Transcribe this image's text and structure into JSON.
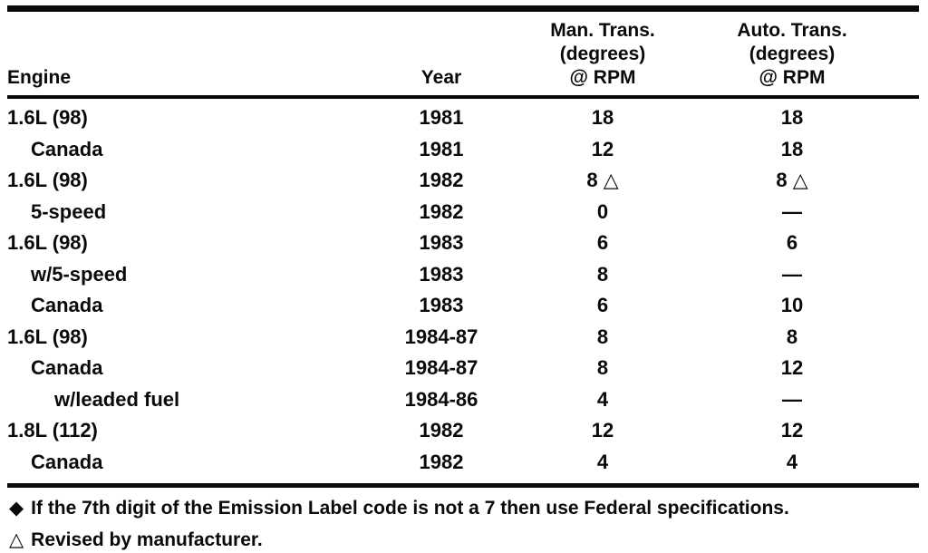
{
  "table": {
    "headers": {
      "engine": "Engine",
      "year": "Year",
      "man_trans": [
        "Man. Trans.",
        "(degrees)",
        "@ RPM"
      ],
      "auto_trans": [
        "Auto. Trans.",
        "(degrees)",
        "@ RPM"
      ]
    },
    "rows": [
      {
        "engine": "1.6L (98)",
        "year": "1981",
        "man": "18",
        "auto": "18",
        "indent": "0"
      },
      {
        "engine": "Canada",
        "year": "1981",
        "man": "12",
        "auto": "18",
        "indent": "1"
      },
      {
        "engine": "1.6L (98)",
        "year": "1982",
        "man": "8 △",
        "auto": "8 △",
        "indent": "0"
      },
      {
        "engine": "5-speed",
        "year": "1982",
        "man": "0",
        "auto": "—",
        "indent": "1"
      },
      {
        "engine": "1.6L (98)",
        "year": "1983",
        "man": "6",
        "auto": "6",
        "indent": "0"
      },
      {
        "engine": "w/5-speed",
        "year": "1983",
        "man": "8",
        "auto": "—",
        "indent": "1"
      },
      {
        "engine": "Canada",
        "year": "1983",
        "man": "6",
        "auto": "10",
        "indent": "1"
      },
      {
        "engine": "1.6L (98)",
        "year": "1984-87",
        "man": "8",
        "auto": "8",
        "indent": "0"
      },
      {
        "engine": "Canada",
        "year": "1984-87",
        "man": "8",
        "auto": "12",
        "indent": "1"
      },
      {
        "engine": "w/leaded fuel",
        "year": "1984-86",
        "man": "4",
        "auto": "—",
        "indent": "2"
      },
      {
        "engine": "1.8L (112)",
        "year": "1982",
        "man": "12",
        "auto": "12",
        "indent": "0"
      },
      {
        "engine": "Canada",
        "year": "1982",
        "man": "4",
        "auto": "4",
        "indent": "1"
      }
    ],
    "footnotes": [
      {
        "symbol": "◆",
        "text": "If the 7th digit of the Emission Label code is not a 7 then use Federal specifications."
      },
      {
        "symbol": "△",
        "text": "Revised by manufacturer."
      }
    ]
  }
}
